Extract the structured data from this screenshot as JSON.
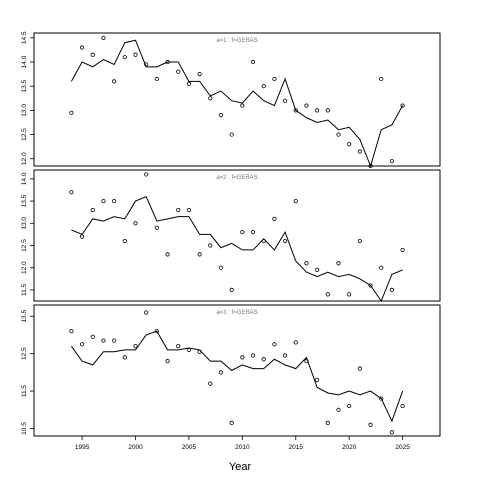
{
  "chart_data": {
    "type": "line",
    "xlabel": "Year",
    "x": [
      1994,
      1995,
      1996,
      1997,
      1998,
      1999,
      2000,
      2001,
      2002,
      2003,
      2004,
      2005,
      2006,
      2007,
      2008,
      2009,
      2010,
      2011,
      2012,
      2013,
      2014,
      2015,
      2016,
      2017,
      2018,
      2019,
      2020,
      2021,
      2022,
      2023,
      2024,
      2025
    ],
    "xlim": [
      1990.5,
      2028.5
    ],
    "xticks": [
      1995,
      2000,
      2005,
      2010,
      2015,
      2020,
      2025
    ],
    "panels": [
      {
        "title": "a=1 : f=GERAS",
        "ylim": [
          11.85,
          14.6
        ],
        "yticks": [
          12.0,
          12.5,
          13.0,
          13.5,
          14.0,
          14.5
        ],
        "ytick_labels": [
          "12.0",
          "12.5",
          "13.0",
          "13.5",
          "14.0",
          "14.5"
        ],
        "fitted": [
          13.6,
          14.0,
          13.9,
          14.05,
          13.95,
          14.4,
          14.45,
          13.9,
          13.9,
          14.0,
          14.0,
          13.6,
          13.6,
          13.3,
          13.4,
          13.2,
          13.15,
          13.4,
          13.2,
          13.1,
          13.65,
          13.0,
          12.85,
          12.75,
          12.8,
          12.6,
          12.65,
          12.4,
          11.85,
          12.6,
          12.7,
          13.1
        ],
        "observed": [
          12.95,
          14.3,
          14.15,
          14.5,
          13.6,
          14.1,
          14.15,
          13.95,
          13.65,
          14.0,
          13.8,
          13.55,
          13.75,
          13.25,
          12.9,
          12.5,
          13.1,
          14.0,
          13.5,
          13.65,
          13.2,
          13.0,
          13.1,
          13.0,
          13.0,
          12.5,
          12.3,
          12.15,
          11.85,
          13.65,
          11.95,
          13.1
        ]
      },
      {
        "title": "a=2 : f=GERAS",
        "ylim": [
          11.25,
          14.2
        ],
        "yticks": [
          11.5,
          12.0,
          12.5,
          13.0,
          13.5,
          14.0
        ],
        "ytick_labels": [
          "11.5",
          "12.0",
          "12.5",
          "13.0",
          "13.5",
          "14.0"
        ],
        "fitted": [
          12.85,
          12.75,
          13.1,
          13.05,
          13.15,
          13.1,
          13.5,
          13.6,
          13.05,
          13.1,
          13.15,
          13.15,
          12.75,
          12.75,
          12.45,
          12.55,
          12.4,
          12.4,
          12.65,
          12.4,
          12.8,
          12.15,
          11.9,
          11.8,
          11.9,
          11.8,
          11.85,
          11.75,
          11.6,
          11.25,
          11.85,
          11.95
        ],
        "observed": [
          13.7,
          12.7,
          13.3,
          13.5,
          13.5,
          12.6,
          13.0,
          14.1,
          12.9,
          12.3,
          13.3,
          13.3,
          12.3,
          12.5,
          12.0,
          11.5,
          12.8,
          12.8,
          12.6,
          13.1,
          12.6,
          13.5,
          12.1,
          11.95,
          11.4,
          12.1,
          11.4,
          12.6,
          11.6,
          12.0,
          11.5,
          12.4
        ]
      },
      {
        "title": "a=3 : f=GERAS",
        "ylim": [
          10.3,
          13.8
        ],
        "yticks": [
          10.5,
          11.5,
          12.5,
          13.5
        ],
        "ytick_labels": [
          "10.5",
          "11.5",
          "12.5",
          "13.5"
        ],
        "fitted": [
          12.7,
          12.3,
          12.2,
          12.55,
          12.55,
          12.6,
          12.6,
          13.0,
          13.1,
          12.6,
          12.6,
          12.65,
          12.6,
          12.3,
          12.3,
          12.05,
          12.2,
          12.1,
          12.1,
          12.35,
          12.2,
          12.1,
          12.4,
          11.6,
          11.45,
          11.4,
          11.5,
          11.4,
          11.5,
          11.3,
          10.7,
          11.5
        ],
        "observed": [
          13.1,
          12.75,
          12.95,
          12.85,
          12.85,
          12.4,
          12.7,
          13.6,
          13.1,
          12.3,
          12.7,
          12.6,
          12.55,
          11.7,
          12.0,
          10.65,
          12.4,
          12.45,
          12.35,
          12.75,
          12.45,
          12.8,
          12.3,
          11.8,
          10.65,
          11.0,
          11.1,
          12.1,
          10.6,
          11.3,
          10.4,
          11.1
        ]
      }
    ]
  }
}
